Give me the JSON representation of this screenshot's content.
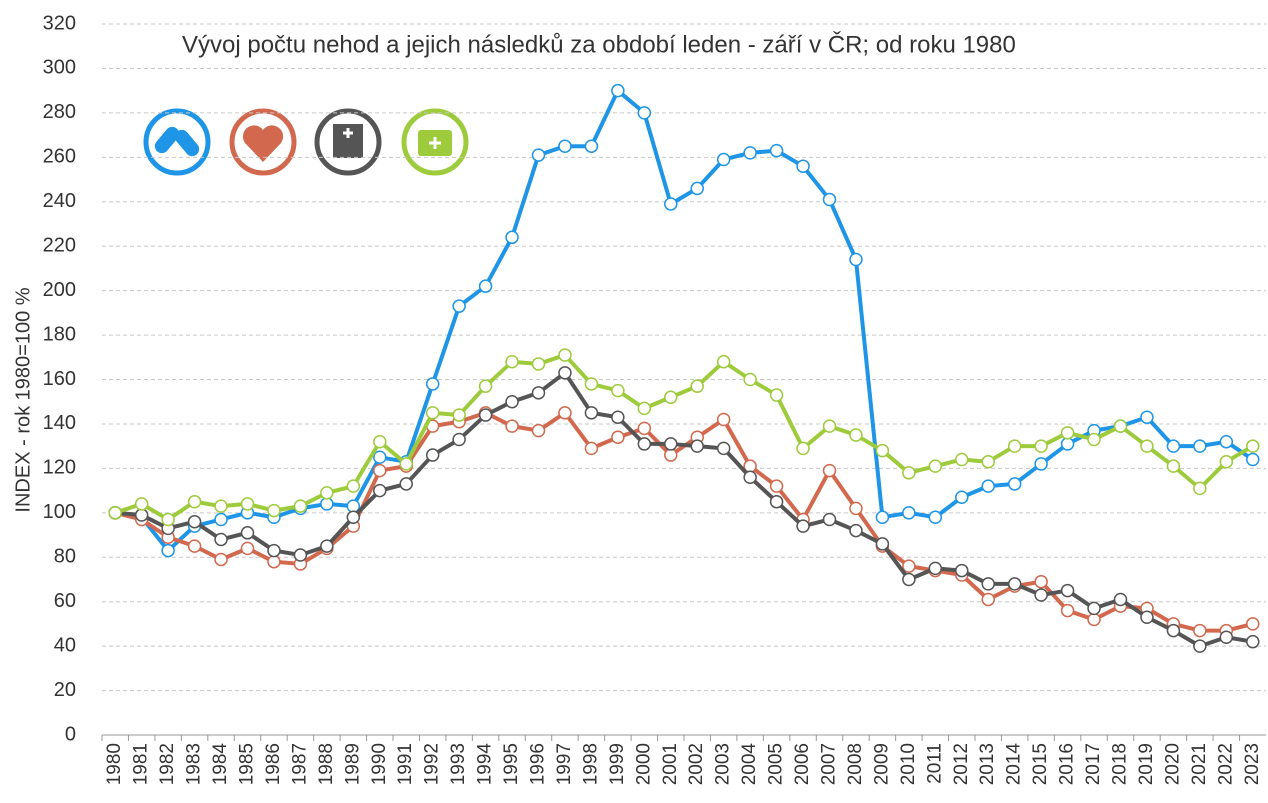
{
  "chart_data": {
    "type": "line",
    "title": "Vývoj počtu nehod a jejich následků za období leden - září v ČR; od roku 1980",
    "y_label": "INDEX - rok 1980=100 %",
    "categories": [
      "1980",
      "1981",
      "1982",
      "1983",
      "1984",
      "1985",
      "1986",
      "1987",
      "1988",
      "1989",
      "1990",
      "1991",
      "1992",
      "1993",
      "1994",
      "1995",
      "1996",
      "1997",
      "1998",
      "1999",
      "2000",
      "2001",
      "2002",
      "2003",
      "2004",
      "2005",
      "2006",
      "2007",
      "2008",
      "2009",
      "2010",
      "2011",
      "2012",
      "2013",
      "2014",
      "2015",
      "2016",
      "2017",
      "2018",
      "2019",
      "2020",
      "2021",
      "2022",
      "2023"
    ],
    "series": [
      {
        "color": "#1e95e6",
        "values": [
          100,
          98,
          83,
          94,
          97,
          100,
          98,
          102,
          104,
          103,
          125,
          123,
          158,
          193,
          202,
          224,
          261,
          265,
          265,
          290,
          280,
          239,
          246,
          259,
          262,
          263,
          256,
          241,
          214,
          98,
          100,
          98,
          107,
          112,
          113,
          122,
          131,
          137,
          139,
          143,
          130,
          130,
          132,
          124
        ]
      },
      {
        "color": "#d2694e",
        "values": [
          100,
          97,
          89,
          85,
          79,
          84,
          78,
          77,
          84,
          94,
          119,
          121,
          139,
          141,
          145,
          139,
          137,
          145,
          129,
          134,
          138,
          126,
          134,
          142,
          121,
          112,
          97,
          119,
          102,
          85,
          76,
          74,
          72,
          61,
          67,
          69,
          56,
          52,
          58,
          57,
          50,
          47,
          47,
          50
        ]
      },
      {
        "color": "#555555",
        "values": [
          100,
          99,
          93,
          96,
          88,
          91,
          83,
          81,
          85,
          98,
          110,
          113,
          126,
          133,
          144,
          150,
          154,
          163,
          145,
          143,
          131,
          131,
          130,
          129,
          116,
          105,
          94,
          97,
          92,
          86,
          70,
          75,
          74,
          68,
          68,
          63,
          65,
          57,
          61,
          53,
          47,
          40,
          44,
          42
        ]
      },
      {
        "color": "#9ecb3c",
        "values": [
          100,
          104,
          97,
          105,
          103,
          104,
          101,
          103,
          109,
          112,
          132,
          122,
          145,
          144,
          157,
          168,
          167,
          171,
          158,
          155,
          147,
          152,
          157,
          168,
          160,
          153,
          129,
          139,
          135,
          128,
          118,
          121,
          124,
          123,
          130,
          130,
          136,
          133,
          139,
          130,
          121,
          111,
          123,
          130
        ]
      }
    ],
    "ylim": [
      0,
      320
    ],
    "yticks": [
      0,
      20,
      40,
      60,
      80,
      100,
      120,
      140,
      160,
      180,
      200,
      220,
      240,
      260,
      280,
      300,
      320
    ],
    "grid": true
  }
}
